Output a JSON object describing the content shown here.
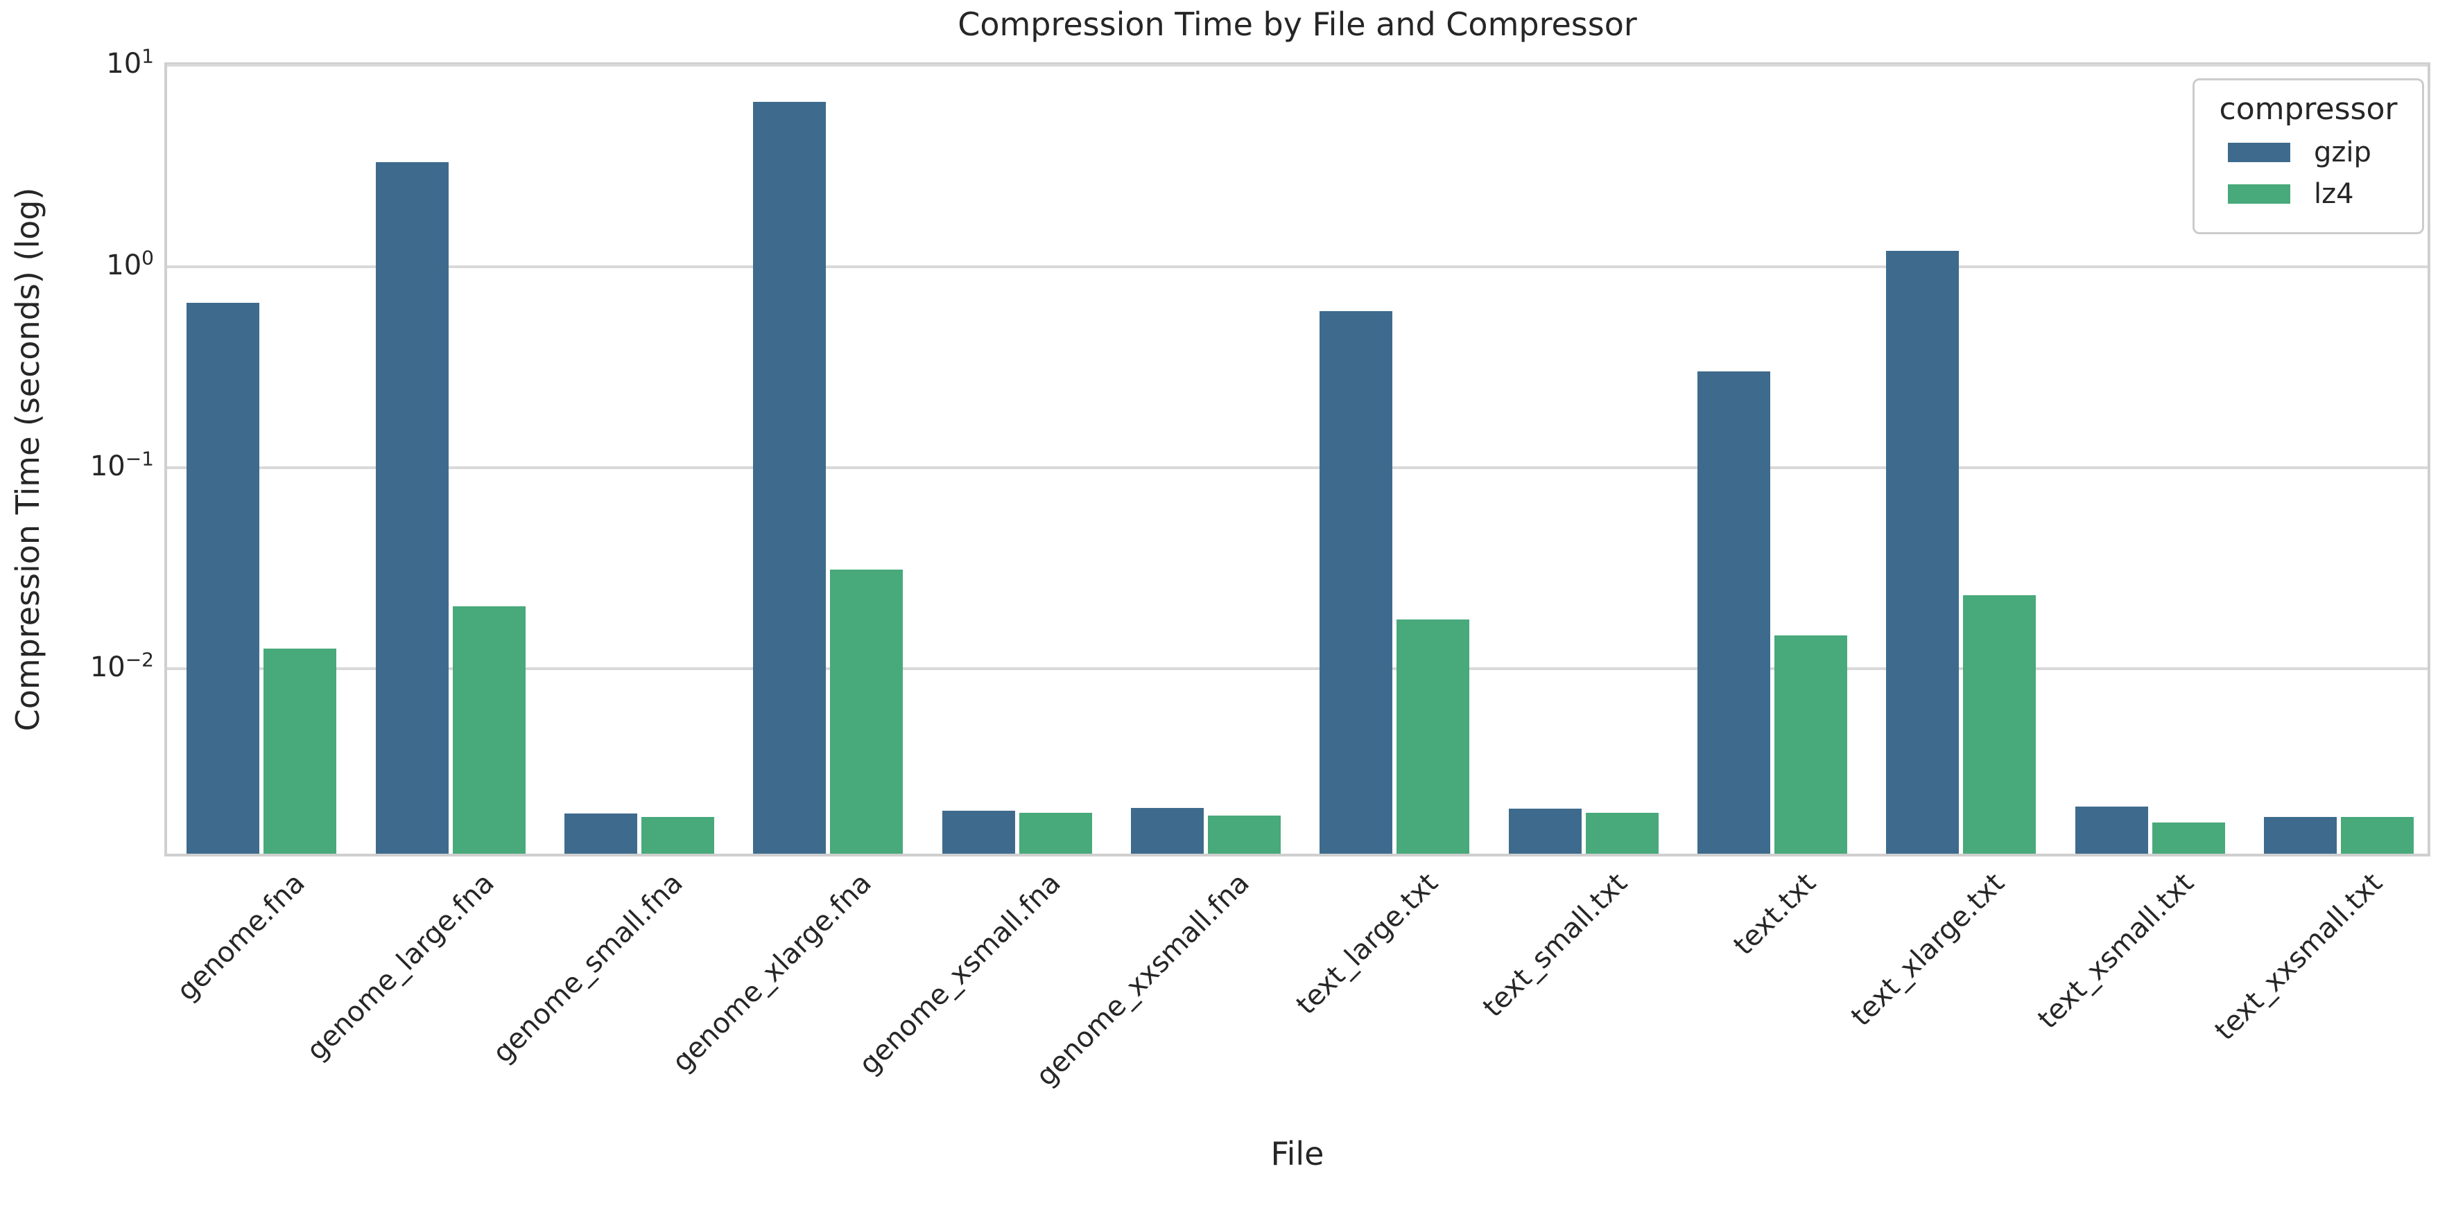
{
  "title": "Compression Time by File and Compressor",
  "axes": {
    "xlabel": "File",
    "ylabel": "Compression Time (seconds) (log)"
  },
  "legend": {
    "title": "compressor",
    "entries": [
      {
        "label": "gzip",
        "color": "#3e6b8d"
      },
      {
        "label": "lz4",
        "color": "#48a97b"
      }
    ]
  },
  "colors": {
    "gzip": "#3e6b8d",
    "lz4": "#48a97b",
    "grid": "#d9d9d9",
    "spine": "#cfcfcf",
    "text": "#262626"
  },
  "chart_data": {
    "type": "bar",
    "title": "Compression Time by File and Compressor",
    "xlabel": "File",
    "ylabel": "Compression Time (seconds) (log)",
    "yscale": "log",
    "grid": true,
    "legend_position": "upper right",
    "categories": [
      "genome.fna",
      "genome_large.fna",
      "genome_small.fna",
      "genome_xlarge.fna",
      "genome_xsmall.fna",
      "genome_xxsmall.fna",
      "text_large.txt",
      "text_small.txt",
      "text.txt",
      "text_xlarge.txt",
      "text_xsmall.txt",
      "text_xxsmall.txt"
    ],
    "series": [
      {
        "name": "gzip",
        "color": "#3e6b8d",
        "values": [
          0.66,
          3.3,
          0.0019,
          6.6,
          0.00196,
          0.00202,
          0.6,
          0.002,
          0.3,
          1.2,
          0.00205,
          0.00182
        ]
      },
      {
        "name": "lz4",
        "color": "#48a97b",
        "values": [
          0.0126,
          0.0204,
          0.00183,
          0.031,
          0.00191,
          0.00185,
          0.0175,
          0.00191,
          0.0146,
          0.0231,
          0.00171,
          0.00182
        ]
      }
    ],
    "ylim": [
      0.00116,
      10.36
    ],
    "yticks": [
      {
        "value": 10,
        "base": "10",
        "exp": "1"
      },
      {
        "value": 1,
        "base": "10",
        "exp": "0"
      },
      {
        "value": 0.1,
        "base": "10",
        "exp": "−1"
      },
      {
        "value": 0.01,
        "base": "10",
        "exp": "−2"
      }
    ]
  }
}
